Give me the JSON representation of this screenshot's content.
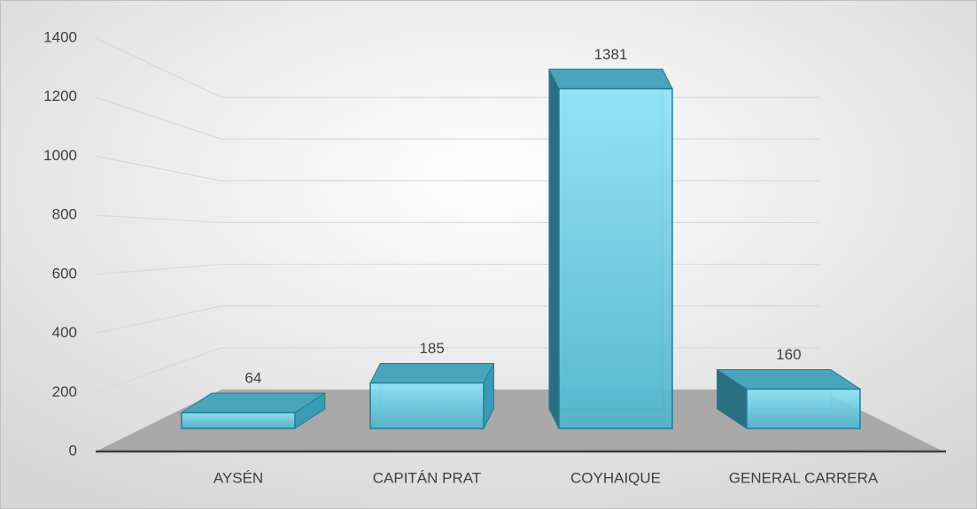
{
  "chart_data": {
    "type": "bar3d",
    "categories": [
      "AYSÉN",
      "CAPITÁN PRAT",
      "COYHAIQUE",
      "GENERAL CARRERA"
    ],
    "values": [
      64,
      185,
      1381,
      160
    ],
    "color": "#6fd0ea",
    "ylim": [
      0,
      1400
    ],
    "yticks": [
      0,
      200,
      400,
      600,
      800,
      1000,
      1200,
      1400
    ],
    "grid": true
  }
}
